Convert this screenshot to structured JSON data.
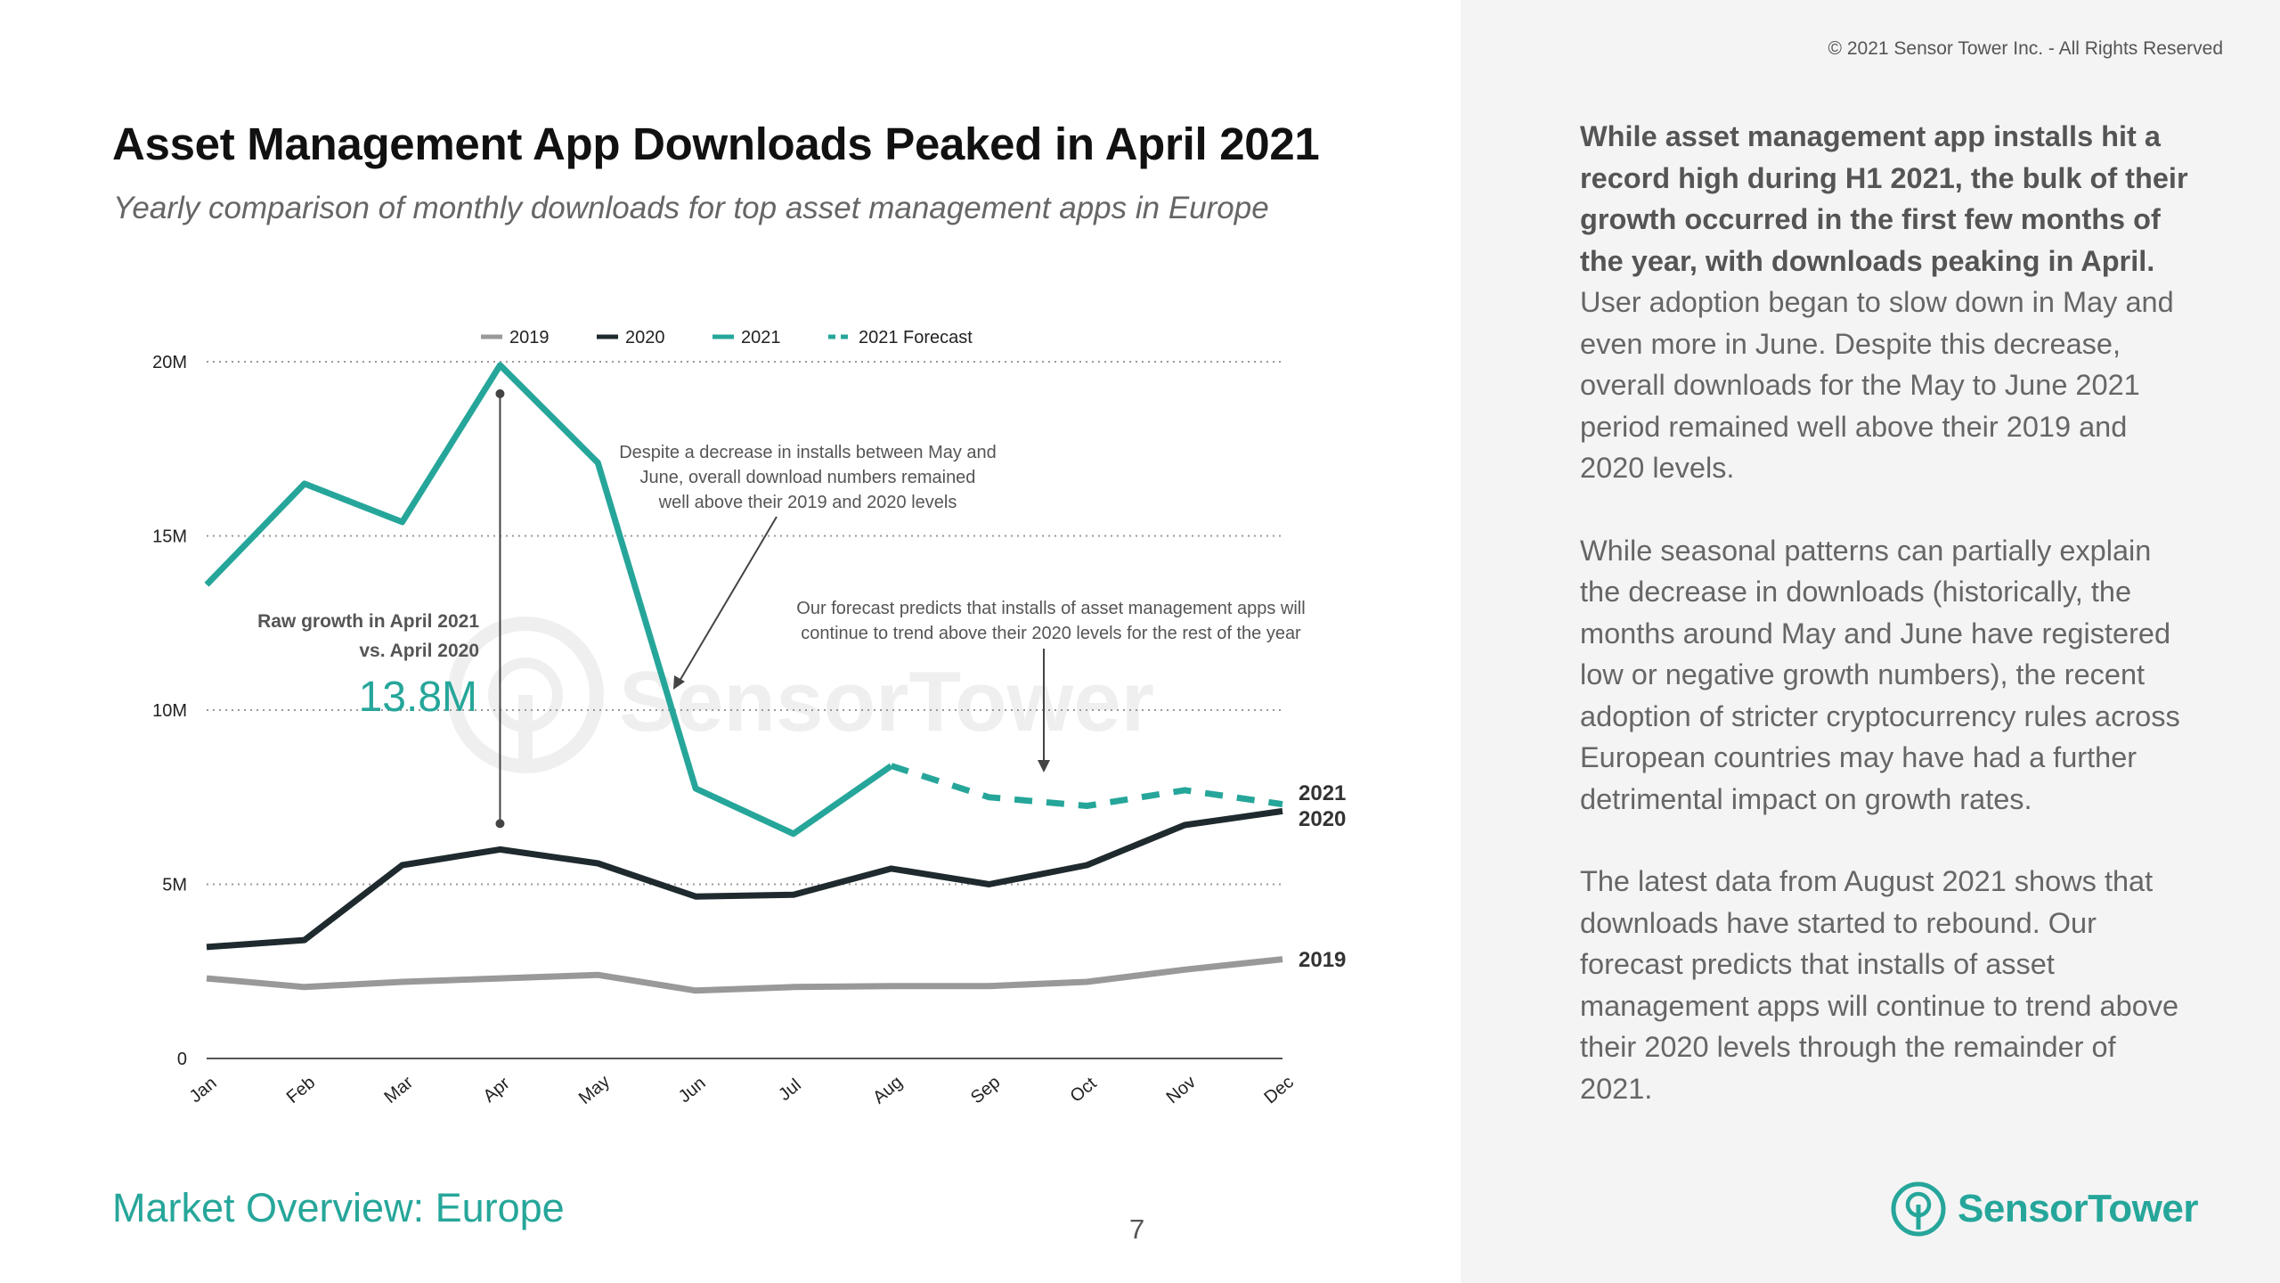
{
  "header": {
    "title": "Asset Management App Downloads Peaked in April 2021",
    "subtitle": "Yearly comparison of monthly downloads for top asset management apps in Europe"
  },
  "footer": {
    "section": "Market Overview: Europe",
    "page": "7"
  },
  "sidebar": {
    "copyright": "© 2021 Sensor Tower Inc. - All Rights Reserved",
    "p1_bold": "While asset management app installs hit a record high during H1 2021, the bulk of their growth occurred in the first few months of the year, with downloads peaking in April.",
    "p1_rest": " User adoption began to slow down in May and even more in June. Despite this decrease, overall downloads for the May to June 2021 period remained well above their 2019 and 2020 levels.",
    "p2": "While seasonal patterns can partially explain the decrease in downloads (historically, the months around May and June have registered low or negative growth numbers), the recent adoption of stricter cryptocurrency rules across European countries may have had a further detrimental impact on growth rates.",
    "p3": "The latest data from August 2021 shows that downloads have started to rebound. Our forecast predicts that installs of asset management apps will continue to trend above their 2020 levels through the remainder of 2021.",
    "logo_word1": "Sensor",
    "logo_word2": "Tower"
  },
  "chart_data": {
    "type": "line",
    "categories": [
      "Jan",
      "Feb",
      "Mar",
      "Apr",
      "May",
      "Jun",
      "Jul",
      "Aug",
      "Sep",
      "Oct",
      "Nov",
      "Dec"
    ],
    "ylim": [
      0,
      20
    ],
    "yticks": [
      0,
      5,
      10,
      15,
      20
    ],
    "ytick_labels": [
      "0",
      "5M",
      "10M",
      "15M",
      "20M"
    ],
    "grid": true,
    "legend_position": "top",
    "series": [
      {
        "name": "2019",
        "color": "#999999",
        "style": "solid",
        "values": [
          2.3,
          2.05,
          2.2,
          2.3,
          2.4,
          1.95,
          2.05,
          2.08,
          2.08,
          2.2,
          2.55,
          2.85
        ]
      },
      {
        "name": "2020",
        "color": "#1e2a2e",
        "style": "solid",
        "values": [
          3.2,
          3.4,
          5.55,
          6.0,
          5.6,
          4.65,
          4.7,
          5.45,
          5.0,
          5.55,
          6.7,
          7.1
        ]
      },
      {
        "name": "2021",
        "color": "#26a69a",
        "style": "solid",
        "values": [
          13.6,
          16.5,
          15.4,
          19.9,
          17.1,
          7.75,
          6.45,
          8.4,
          null,
          null,
          null,
          null
        ]
      },
      {
        "name": "2021 Forecast",
        "color": "#26a69a",
        "style": "dashed",
        "values": [
          null,
          null,
          null,
          null,
          null,
          null,
          null,
          8.4,
          7.5,
          7.25,
          7.7,
          7.3
        ]
      }
    ],
    "end_labels": [
      "2021",
      "2020",
      "2019"
    ],
    "annotations": {
      "raw_growth_label_line1": "Raw growth in April 2021",
      "raw_growth_label_line2": "vs. April 2020",
      "raw_growth_value": "13.8M",
      "decrease_note_line1": "Despite a decrease in installs between May and",
      "decrease_note_line2": "June, overall download numbers remained",
      "decrease_note_line3": "well above their 2019 and 2020 levels",
      "forecast_note_line1": "Our forecast predicts that installs of asset management apps will",
      "forecast_note_line2": "continue to trend above their 2020 levels for the rest of the year"
    },
    "watermark": "SensorTower"
  }
}
